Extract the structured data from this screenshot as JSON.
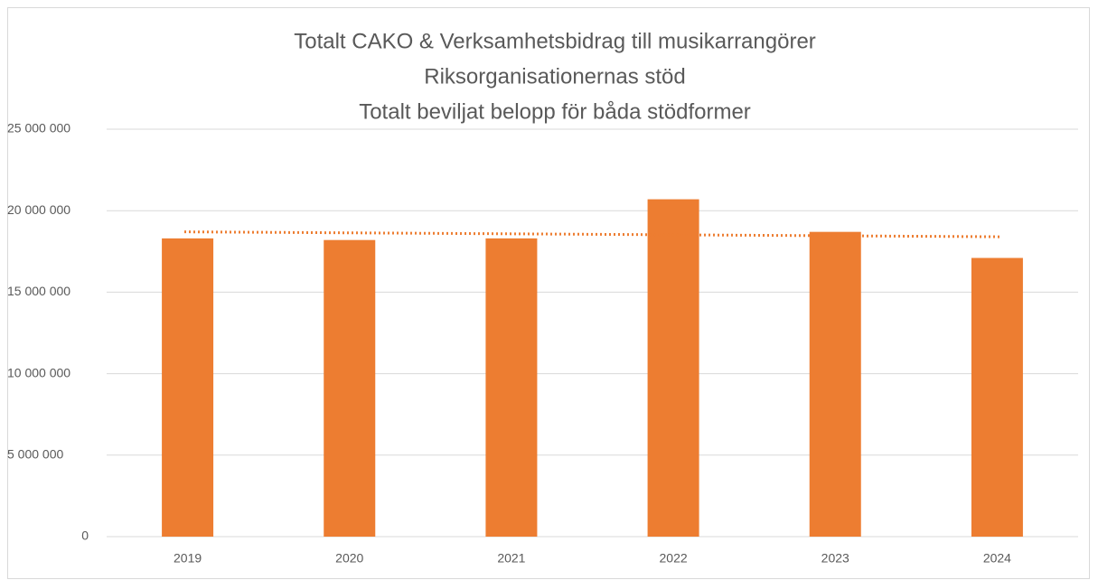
{
  "chart_data": {
    "type": "bar",
    "title": [
      "Totalt CAKO & Verksamhetsbidrag till musikarrangörer",
      "Riksorganisationernas stöd",
      "Totalt beviljat belopp för båda stödformer"
    ],
    "categories": [
      "2019",
      "2020",
      "2021",
      "2022",
      "2023",
      "2024"
    ],
    "values": [
      18300000,
      18200000,
      18300000,
      20700000,
      18700000,
      17100000
    ],
    "color": "#ed7d31",
    "trendline": "linear",
    "ylim": [
      0,
      25000000
    ],
    "yticks": [
      0,
      {
        "value": 5000000,
        "label": "5 000 000"
      },
      {
        "value": 10000000,
        "label": "10 000 000"
      },
      {
        "value": 15000000,
        "label": "15 000 000"
      },
      {
        "value": 20000000,
        "label": "20 000 000"
      },
      {
        "value": 25000000,
        "label": "25 000 000"
      }
    ],
    "grid": true
  }
}
